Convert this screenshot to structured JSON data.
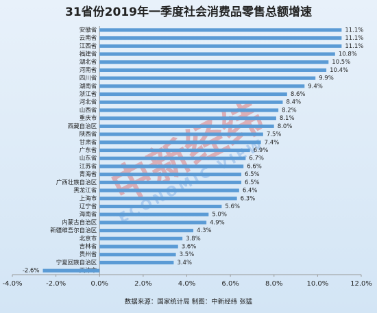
{
  "chart_data": {
    "type": "barh",
    "title": "31省份2019年一季度社会消费品零售总额增速",
    "source": "数据来源：国家统计局  制图：中新经纬 张猛",
    "watermark": "中新经纬",
    "watermark_sub": "ECONOMIC VIEW",
    "color": "#5b9bd5",
    "categories": [
      "安徽省",
      "云南省",
      "江西省",
      "福建省",
      "湖北省",
      "河南省",
      "四川省",
      "湖南省",
      "浙江省",
      "河北省",
      "山西省",
      "重庆市",
      "西藏自治区",
      "陕西省",
      "甘肃省",
      "广东省",
      "山东省",
      "江苏省",
      "青海省",
      "广西壮族自治区",
      "黑龙江省",
      "上海市",
      "辽宁省",
      "海南省",
      "内蒙古自治区",
      "新疆维吾尔自治区",
      "北京市",
      "吉林省",
      "贵州省",
      "宁夏回族自治区",
      "天津市"
    ],
    "values": [
      11.1,
      11.1,
      11.1,
      10.8,
      10.5,
      10.4,
      9.9,
      9.4,
      8.6,
      8.4,
      8.2,
      8.1,
      8.0,
      7.5,
      7.4,
      6.9,
      6.7,
      6.6,
      6.5,
      6.5,
      6.4,
      6.3,
      5.6,
      5.0,
      4.9,
      4.3,
      3.8,
      3.6,
      3.5,
      3.4,
      -2.6
    ],
    "value_labels": [
      "11.1%",
      "11.1%",
      "11.1%",
      "10.8%",
      "10.5%",
      "10.4%",
      "9.9%",
      "9.4%",
      "8.6%",
      "8.4%",
      "8.2%",
      "8.1%",
      "8.0%",
      "7.5%",
      "7.4%",
      "6.9%",
      "6.7%",
      "6.6%",
      "6.5%",
      "6.5%",
      "6.4%",
      "6.3%",
      "5.6%",
      "5.0%",
      "4.9%",
      "4.3%",
      "3.8%",
      "3.6%",
      "3.5%",
      "3.4%",
      "-2.6%"
    ],
    "xlim": [
      -4,
      12
    ],
    "xticks": [
      {
        "value": -4,
        "label": "-4.0%"
      },
      {
        "value": -2,
        "label": "-2.0%"
      },
      {
        "value": 0,
        "label": "0.0%"
      },
      {
        "value": 2,
        "label": "2.0%"
      },
      {
        "value": 4,
        "label": "4.0%"
      },
      {
        "value": 6,
        "label": "6.0%"
      },
      {
        "value": 8,
        "label": "8.0%"
      },
      {
        "value": 10,
        "label": "10.0%"
      },
      {
        "value": 12,
        "label": "12.0%"
      }
    ],
    "grid": false
  }
}
